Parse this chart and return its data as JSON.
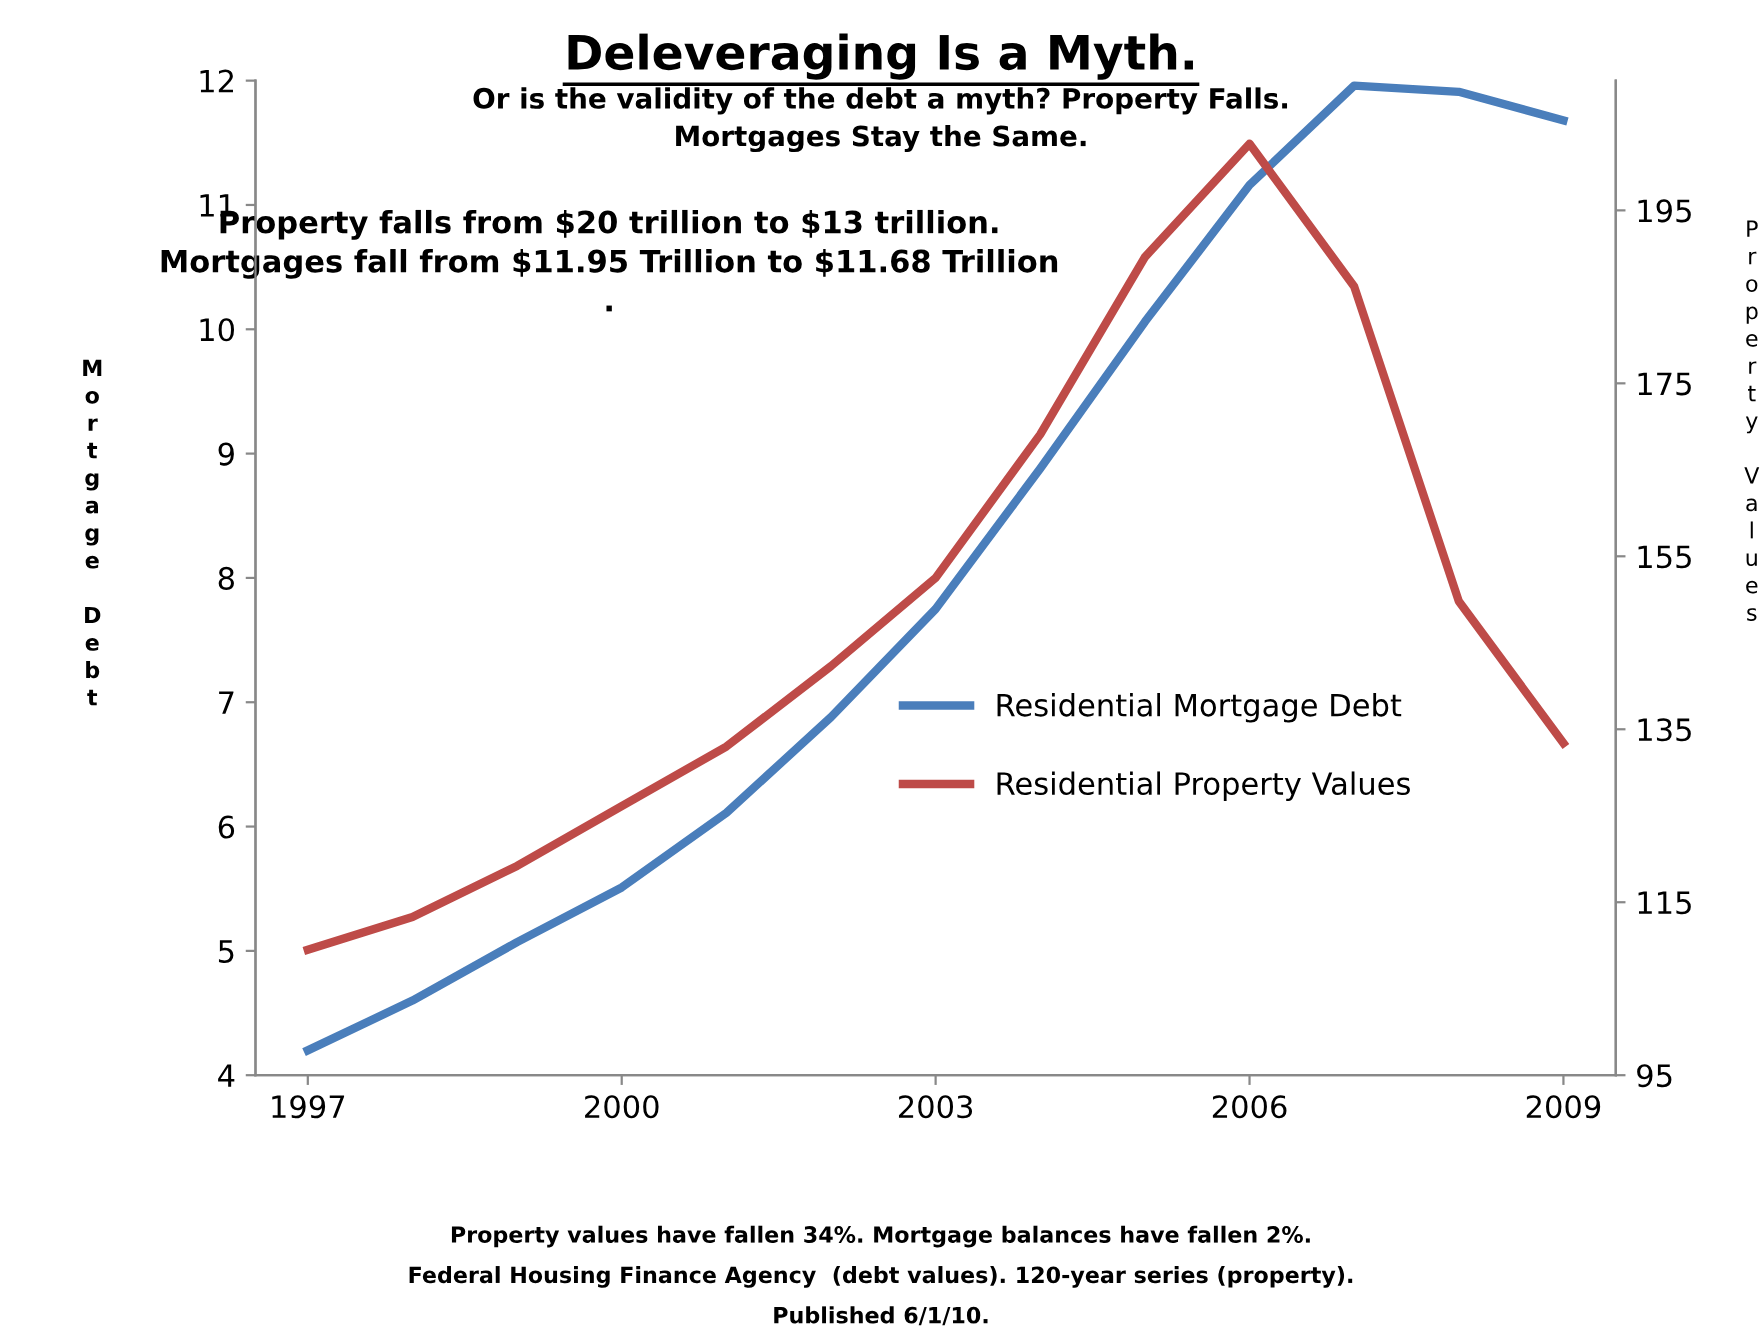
{
  "chart_data": {
    "type": "line",
    "title": "Deleveraging Is a Myth.",
    "subtitle": "Or is the validity of the debt a myth? Property Falls. Mortgages Stay the Same.",
    "ylabel": "Mortgage Debt",
    "y2label": "Property Values",
    "categories": [
      "1997",
      null,
      null,
      "2000",
      null,
      null,
      "2003",
      null,
      null,
      "2006",
      null,
      null,
      "2009"
    ],
    "ylim": [
      4,
      12
    ],
    "yticks": [
      4,
      5,
      6,
      7,
      8,
      9,
      10,
      11,
      12
    ],
    "y2lim": [
      95,
      210
    ],
    "y2ticks": [
      95,
      115,
      135,
      155,
      175,
      195
    ],
    "series": [
      {
        "name": "Residential Mortgage Debt",
        "color": "#4a7ebb",
        "values": [
          4.2,
          4.6,
          5.07,
          5.51,
          6.11,
          6.88,
          7.75,
          8.88,
          10.06,
          11.16,
          11.96,
          11.91,
          11.68
        ]
      },
      {
        "name": "Residential Property Values",
        "color": "#be4b48",
        "axis": "y2",
        "values": [
          109.5,
          113.3,
          119.2,
          126.1,
          133.0,
          142.3,
          152.5,
          169.1,
          189.6,
          202.7,
          186.2,
          149.8,
          133.4
        ]
      }
    ],
    "legend": "center right",
    "grid": false,
    "annotations": [
      "Property falls from $20 trillion to $13 trillion. Mortgages fall from $11.95 Trillion to $11.68 Trillion .",
      "Property values have fallen 34%. Mortgage balances have fallen 2%.",
      "Federal Housing Finance Agency  (debt values). 120-year series (property).",
      "Published 6/1/10."
    ]
  }
}
